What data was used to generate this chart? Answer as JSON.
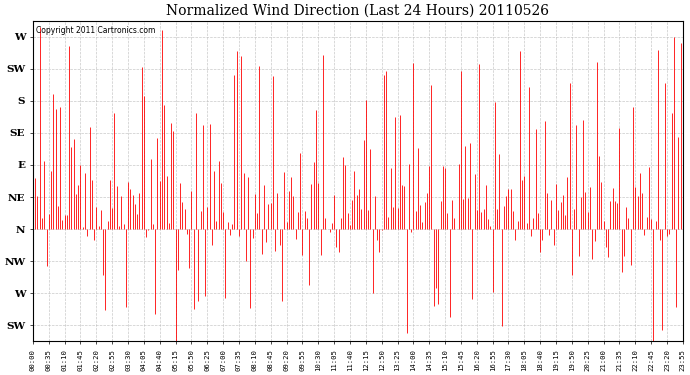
{
  "title": "Normalized Wind Direction (Last 24 Hours) 20110526",
  "copyright_text": "Copyright 2011 Cartronics.com",
  "line_color": "#ff0000",
  "background_color": "#ffffff",
  "plot_bg_color": "#ffffff",
  "grid_color": "#bbbbbb",
  "ytick_labels": [
    "SW",
    "W",
    "NW",
    "N",
    "NE",
    "E",
    "SE",
    "S",
    "SW",
    "W"
  ],
  "ytick_values": [
    -2,
    -1,
    0,
    1,
    2,
    3,
    4,
    5,
    6,
    7
  ],
  "ylim": [
    -2.5,
    7.5
  ],
  "xtick_labels": [
    "00:00",
    "00:35",
    "01:10",
    "01:45",
    "02:20",
    "02:55",
    "03:30",
    "04:05",
    "04:40",
    "05:15",
    "05:50",
    "06:25",
    "07:00",
    "07:35",
    "08:10",
    "08:45",
    "09:20",
    "09:55",
    "10:30",
    "11:05",
    "11:40",
    "12:15",
    "12:50",
    "13:25",
    "14:00",
    "14:35",
    "15:10",
    "15:45",
    "16:20",
    "16:55",
    "17:30",
    "18:05",
    "18:40",
    "19:15",
    "19:50",
    "20:25",
    "21:00",
    "21:35",
    "22:10",
    "22:45",
    "23:20",
    "23:55"
  ],
  "figsize": [
    6.9,
    3.75
  ],
  "dpi": 100,
  "seed": 123
}
